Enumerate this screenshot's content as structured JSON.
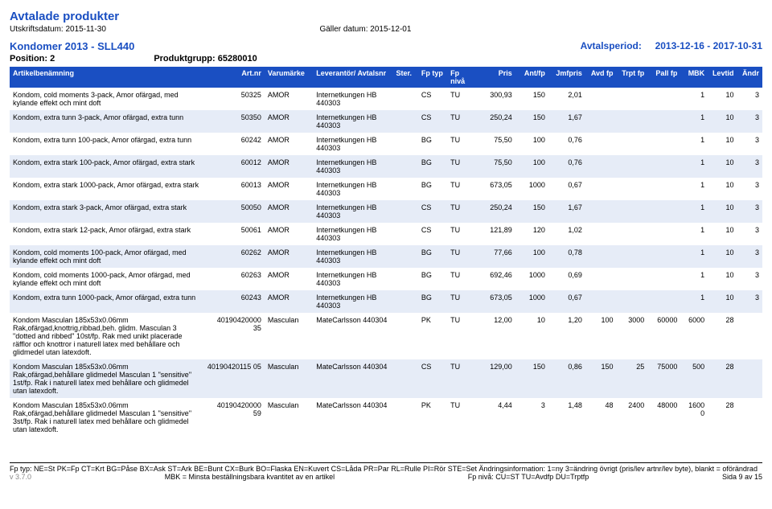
{
  "page_title": "Avtalade produkter",
  "print_date_label": "Utskriftsdatum:",
  "print_date": "2015-11-30",
  "valid_date_label": "Gäller datum:",
  "valid_date": "2015-12-01",
  "group_name": "Kondomer 2013 - SLL440",
  "period_label": "Avtalsperiod:",
  "period_value": "2013-12-16 - 2017-10-31",
  "position_label": "Position:",
  "position_value": "2",
  "prodgrupp_label": "Produktgrupp:",
  "prodgrupp_value": "65280010",
  "header": {
    "artikel": "Artikelbenämning",
    "artnr": "Art.nr",
    "varum": "Varumärke",
    "lev": "Leverantör/ Avtalsnr",
    "ster": "Ster.",
    "fptyp": "Fp typ",
    "fpniva": "Fp nivå",
    "pris": "Pris",
    "antfp": "Ant/fp",
    "jmfpris": "Jmfpris",
    "avdfp": "Avd fp",
    "trptfp": "Trpt fp",
    "pallfp": "Pall fp",
    "mbk": "MBK",
    "levtid": "Levtid",
    "andr": "Ändr"
  },
  "rows": [
    {
      "alt": false,
      "desc": "Kondom, cold moments 3-pack, Amor ofärgad, med kylande effekt och mint doft",
      "artnr": "50325",
      "varum": "AMOR",
      "lev": "Internetkungen HB 440303",
      "ster": "",
      "fptyp": "CS",
      "fpniva": "TU",
      "pris": "300,93",
      "antfp": "150",
      "jmfpris": "2,01",
      "avdfp": "",
      "trptfp": "",
      "pallfp": "",
      "mbk": "1",
      "levtid": "10",
      "andr": "3"
    },
    {
      "alt": true,
      "desc": "Kondom, extra tunn 3-pack, Amor ofärgad, extra tunn",
      "artnr": "50350",
      "varum": "AMOR",
      "lev": "Internetkungen HB 440303",
      "ster": "",
      "fptyp": "CS",
      "fpniva": "TU",
      "pris": "250,24",
      "antfp": "150",
      "jmfpris": "1,67",
      "avdfp": "",
      "trptfp": "",
      "pallfp": "",
      "mbk": "1",
      "levtid": "10",
      "andr": "3"
    },
    {
      "alt": false,
      "desc": "Kondom, extra tunn 100-pack, Amor ofärgad, extra tunn",
      "artnr": "60242",
      "varum": "AMOR",
      "lev": "Internetkungen HB 440303",
      "ster": "",
      "fptyp": "BG",
      "fpniva": "TU",
      "pris": "75,50",
      "antfp": "100",
      "jmfpris": "0,76",
      "avdfp": "",
      "trptfp": "",
      "pallfp": "",
      "mbk": "1",
      "levtid": "10",
      "andr": "3"
    },
    {
      "alt": true,
      "desc": "Kondom, extra stark 100-pack, Amor ofärgad, extra stark",
      "artnr": "60012",
      "varum": "AMOR",
      "lev": "Internetkungen HB 440303",
      "ster": "",
      "fptyp": "BG",
      "fpniva": "TU",
      "pris": "75,50",
      "antfp": "100",
      "jmfpris": "0,76",
      "avdfp": "",
      "trptfp": "",
      "pallfp": "",
      "mbk": "1",
      "levtid": "10",
      "andr": "3"
    },
    {
      "alt": false,
      "desc": "Kondom, extra stark 1000-pack, Amor ofärgad, extra stark",
      "artnr": "60013",
      "varum": "AMOR",
      "lev": "Internetkungen HB 440303",
      "ster": "",
      "fptyp": "BG",
      "fpniva": "TU",
      "pris": "673,05",
      "antfp": "1000",
      "jmfpris": "0,67",
      "avdfp": "",
      "trptfp": "",
      "pallfp": "",
      "mbk": "1",
      "levtid": "10",
      "andr": "3"
    },
    {
      "alt": true,
      "desc": "Kondom, extra stark 3-pack, Amor ofärgad, extra stark",
      "artnr": "50050",
      "varum": "AMOR",
      "lev": "Internetkungen HB 440303",
      "ster": "",
      "fptyp": "CS",
      "fpniva": "TU",
      "pris": "250,24",
      "antfp": "150",
      "jmfpris": "1,67",
      "avdfp": "",
      "trptfp": "",
      "pallfp": "",
      "mbk": "1",
      "levtid": "10",
      "andr": "3"
    },
    {
      "alt": false,
      "desc": "Kondom, extra stark 12-pack, Amor ofärgad, extra stark",
      "artnr": "50061",
      "varum": "AMOR",
      "lev": "Internetkungen HB 440303",
      "ster": "",
      "fptyp": "CS",
      "fpniva": "TU",
      "pris": "121,89",
      "antfp": "120",
      "jmfpris": "1,02",
      "avdfp": "",
      "trptfp": "",
      "pallfp": "",
      "mbk": "1",
      "levtid": "10",
      "andr": "3"
    },
    {
      "alt": true,
      "desc": "Kondom, cold moments 100-pack, Amor ofärgad, med kylande effekt och mint doft",
      "artnr": "60262",
      "varum": "AMOR",
      "lev": "Internetkungen HB 440303",
      "ster": "",
      "fptyp": "BG",
      "fpniva": "TU",
      "pris": "77,66",
      "antfp": "100",
      "jmfpris": "0,78",
      "avdfp": "",
      "trptfp": "",
      "pallfp": "",
      "mbk": "1",
      "levtid": "10",
      "andr": "3"
    },
    {
      "alt": false,
      "desc": "Kondom, cold moments 1000-pack, Amor ofärgad, med kylande effekt och mint doft",
      "artnr": "60263",
      "varum": "AMOR",
      "lev": "Internetkungen HB 440303",
      "ster": "",
      "fptyp": "BG",
      "fpniva": "TU",
      "pris": "692,46",
      "antfp": "1000",
      "jmfpris": "0,69",
      "avdfp": "",
      "trptfp": "",
      "pallfp": "",
      "mbk": "1",
      "levtid": "10",
      "andr": "3"
    },
    {
      "alt": true,
      "desc": "Kondom, extra tunn 1000-pack, Amor ofärgad, extra tunn",
      "artnr": "60243",
      "varum": "AMOR",
      "lev": "Internetkungen HB 440303",
      "ster": "",
      "fptyp": "BG",
      "fpniva": "TU",
      "pris": "673,05",
      "antfp": "1000",
      "jmfpris": "0,67",
      "avdfp": "",
      "trptfp": "",
      "pallfp": "",
      "mbk": "1",
      "levtid": "10",
      "andr": "3"
    },
    {
      "alt": false,
      "desc": "Kondom Masculan 185x53x0.06mm Rak,ofärgad,knottrig,ribbad,beh. glidm. Masculan 3 \"dotted and ribbed\" 10st/fp. Rak med unikt placerade räfflor och knottror i naturell latex med behållare och glidmedel utan latexdoft.",
      "artnr": "40190420000 35",
      "varum": "Masculan",
      "lev": "MateCarlsson 440304",
      "ster": "",
      "fptyp": "PK",
      "fpniva": "TU",
      "pris": "12,00",
      "antfp": "10",
      "jmfpris": "1,20",
      "avdfp": "100",
      "trptfp": "3000",
      "pallfp": "60000",
      "mbk": "6000",
      "levtid": "28",
      "andr": ""
    },
    {
      "alt": true,
      "desc": "Kondom Masculan 185x53x0.06mm Rak,ofärgad,behållare glidmedel Masculan 1 \"sensitive\" 1st/fp. Rak i naturell latex med behållare och glidmedel utan latexdoft.",
      "artnr": "40190420115 05",
      "varum": "Masculan",
      "lev": "MateCarlsson 440304",
      "ster": "",
      "fptyp": "CS",
      "fpniva": "TU",
      "pris": "129,00",
      "antfp": "150",
      "jmfpris": "0,86",
      "avdfp": "150",
      "trptfp": "25",
      "pallfp": "75000",
      "mbk": "500",
      "levtid": "28",
      "andr": ""
    },
    {
      "alt": false,
      "desc": "Kondom Masculan 185x53x0.06mm Rak,ofärgad,behållare glidmedel Masculan 1 \"sensitive\" 3st/fp. Rak i naturell latex med behållare och glidmedel utan latexdoft.",
      "artnr": "40190420000 59",
      "varum": "Masculan",
      "lev": "MateCarlsson 440304",
      "ster": "",
      "fptyp": "PK",
      "fpniva": "TU",
      "pris": "4,44",
      "antfp": "3",
      "jmfpris": "1,48",
      "avdfp": "48",
      "trptfp": "2400",
      "pallfp": "48000",
      "mbk": "1600 0",
      "levtid": "28",
      "andr": ""
    }
  ],
  "footer": {
    "legend": "Fp typ: NE=St PK=Fp CT=Krt BG=Påse BX=Ask ST=Ark BE=Bunt CX=Burk BO=Flaska EN=Kuvert CS=Låda PR=Par RL=Rulle PI=Rör STE=Set Ändringsinformation: 1=ny 3=ändring övrigt (pris/lev artnr/lev byte), blankt = oförändrad",
    "mbk": "MBK = Minsta beställningsbara kvantitet av en artikel",
    "fpniva": "Fp nivå: CU=ST TU=Avdfp DU=Trptfp",
    "version": "v 3.7.0",
    "page": "Sida 9 av 15"
  },
  "col_widths": [
    "200px",
    "62px",
    "50px",
    "82px",
    "26px",
    "30px",
    "32px",
    "38px",
    "34px",
    "38px",
    "32px",
    "32px",
    "34px",
    "28px",
    "30px",
    "26px"
  ]
}
